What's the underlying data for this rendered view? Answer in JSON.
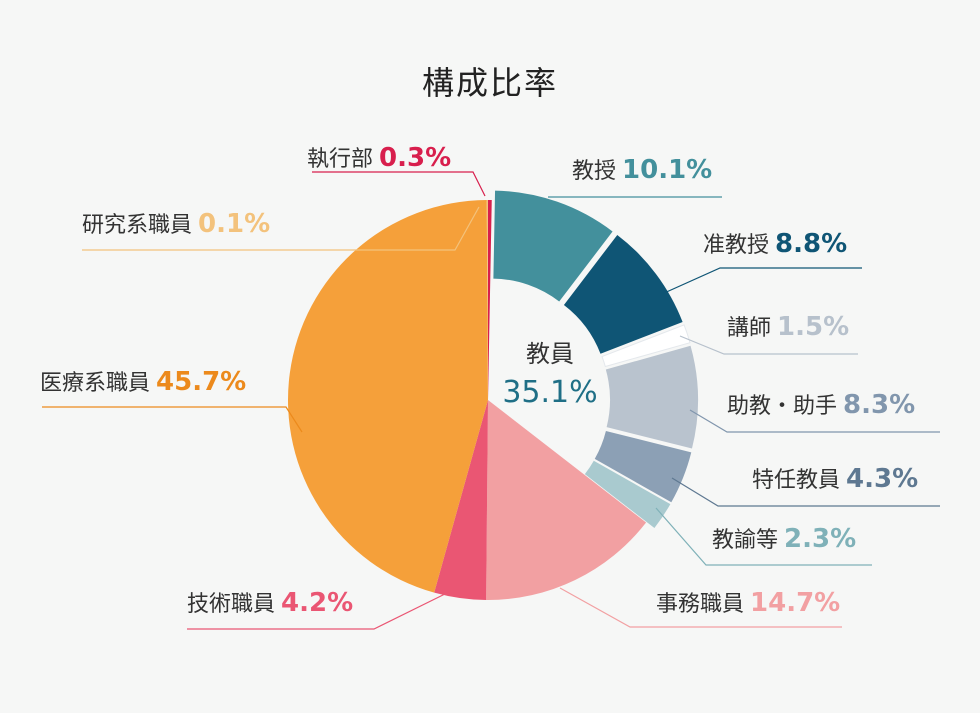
{
  "chart_data": {
    "type": "pie",
    "title": "構成比率",
    "unit": "%",
    "center_group": {
      "name": "教員",
      "value": "35.1%"
    },
    "slices": [
      {
        "name": "執行部",
        "value": 0.3,
        "label": "0.3%",
        "color": "#d81f4d",
        "group": "staff"
      },
      {
        "name": "教授",
        "value": 10.1,
        "label": "10.1%",
        "color": "#43909c",
        "group": "faculty"
      },
      {
        "name": "准教授",
        "value": 8.8,
        "label": "8.8%",
        "color": "#0f5575",
        "group": "faculty"
      },
      {
        "name": "講師",
        "value": 1.5,
        "label": "1.5%",
        "color": "#ffffff",
        "group": "faculty",
        "text_color": "#b7c1cc"
      },
      {
        "name": "助教・助手",
        "value": 8.3,
        "label": "8.3%",
        "color": "#b9c3ce",
        "group": "faculty",
        "text_color": "#8196ad"
      },
      {
        "name": "特任教員",
        "value": 4.3,
        "label": "4.3%",
        "color": "#8ca0b5",
        "group": "faculty",
        "text_color": "#5e7891"
      },
      {
        "name": "教諭等",
        "value": 2.3,
        "label": "2.3%",
        "color": "#a9cacf",
        "group": "faculty",
        "text_color": "#7fb1b8"
      },
      {
        "name": "事務職員",
        "value": 14.7,
        "label": "14.7%",
        "color": "#f2a0a2",
        "group": "staff"
      },
      {
        "name": "技術職員",
        "value": 4.2,
        "label": "4.2%",
        "color": "#ea5673",
        "group": "staff"
      },
      {
        "name": "医療系職員",
        "value": 45.7,
        "label": "45.7%",
        "color": "#f5a03a",
        "group": "staff",
        "text_color": "#ec8a1c"
      },
      {
        "name": "研究系職員",
        "value": 0.1,
        "label": "0.1%",
        "color": "#f3c27c",
        "group": "staff"
      }
    ]
  }
}
